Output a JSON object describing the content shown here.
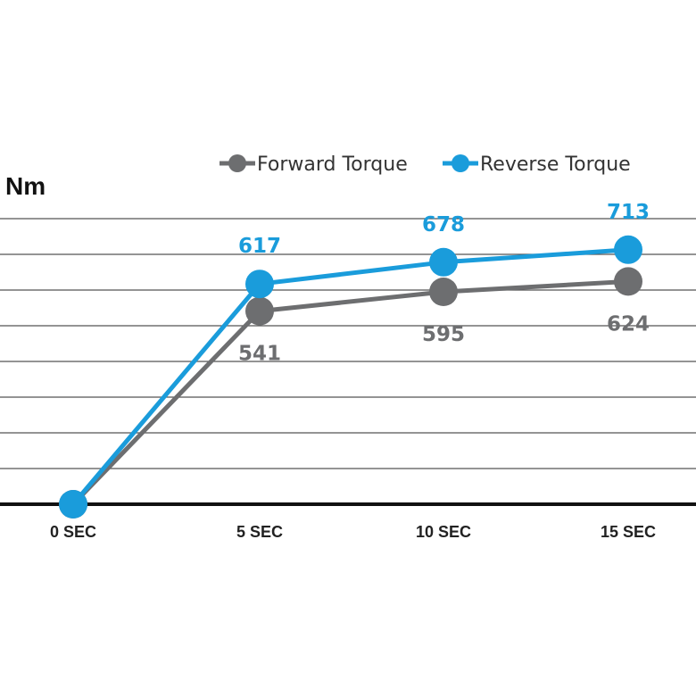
{
  "chart_data": {
    "type": "line",
    "ylabel": "Nm",
    "xlabel": "",
    "title": "",
    "categories": [
      "0 SEC",
      "5 SEC",
      "10 SEC",
      "15 SEC"
    ],
    "ylim": [
      0,
      800
    ],
    "grid": true,
    "legend_position": "top-right",
    "series": [
      {
        "name": "Forward Torque",
        "color": "#6d6e70",
        "values": [
          0,
          541,
          595,
          624
        ],
        "labels": [
          "",
          "541",
          "595",
          "624"
        ],
        "label_position": "below"
      },
      {
        "name": "Reverse Torque",
        "color": "#1a9cdb",
        "values": [
          0,
          617,
          678,
          713
        ],
        "labels": [
          "",
          "617",
          "678",
          "713"
        ],
        "label_position": "above"
      }
    ]
  }
}
